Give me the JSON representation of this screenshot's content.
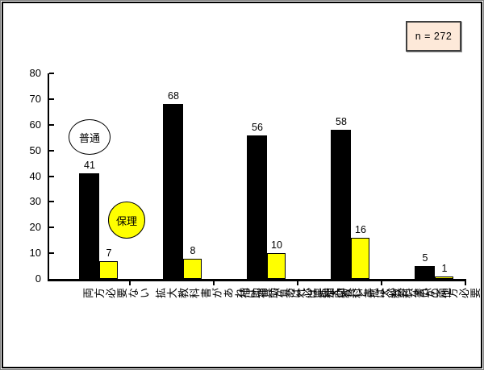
{
  "sample_box": {
    "text": "n = 272",
    "bg_color": "#FDE9D9",
    "border_color": "#3F3F3F"
  },
  "annotations": {
    "series1_circle_label": "普通",
    "series2_circle_label": "保理"
  },
  "chart_data": {
    "type": "bar",
    "title": "",
    "xlabel": "",
    "ylabel": "",
    "categories": [
      "両方必要ない",
      "拡大教科書が\nあれば補助具\nは必要ない",
      "補助具があれ\nば拡大教科書\nは必要ない",
      "補助具と拡大\n教科書が両方\n必要",
      "その他"
    ],
    "series": [
      {
        "name": "普通",
        "color": "#000000",
        "values": [
          41,
          68,
          56,
          58,
          5
        ]
      },
      {
        "name": "保理",
        "color": "#FFFF00",
        "values": [
          7,
          8,
          10,
          16,
          1
        ]
      }
    ],
    "ylim": [
      0,
      80
    ],
    "yticks": [
      0,
      10,
      20,
      30,
      40,
      50,
      60,
      70,
      80
    ],
    "value_labels": true,
    "grid": false,
    "legend_position": "floating circle annotations inside plot",
    "category_label_rotation_deg": 90
  }
}
